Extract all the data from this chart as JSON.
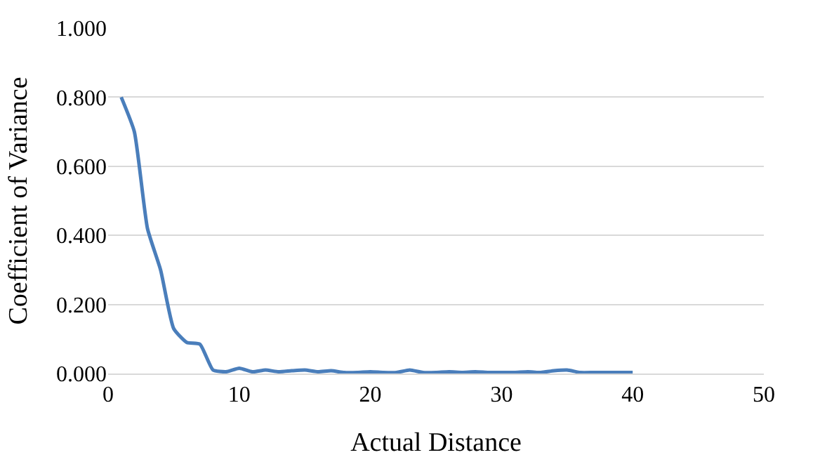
{
  "chart_data": {
    "type": "line",
    "xlabel": "Actual Distance",
    "ylabel": "Coefficient of Variance",
    "x": [
      1,
      2,
      3,
      4,
      5,
      6,
      7,
      8,
      9,
      10,
      11,
      12,
      13,
      14,
      15,
      16,
      17,
      18,
      19,
      20,
      21,
      22,
      23,
      24,
      25,
      26,
      27,
      28,
      29,
      30,
      31,
      32,
      33,
      34,
      35,
      36,
      37,
      38,
      39,
      40
    ],
    "series": [
      {
        "color": "#4a7ebb",
        "values": [
          0.8,
          0.7,
          0.42,
          0.3,
          0.13,
          0.09,
          0.085,
          0.01,
          0.005,
          0.015,
          0.005,
          0.01,
          0.005,
          0.008,
          0.01,
          0.005,
          0.008,
          0.003,
          0.003,
          0.005,
          0.003,
          0.003,
          0.01,
          0.003,
          0.003,
          0.005,
          0.003,
          0.005,
          0.003,
          0.003,
          0.003,
          0.005,
          0.003,
          0.008,
          0.01,
          0.003,
          0.003,
          0.003,
          0.003,
          0.003
        ]
      }
    ],
    "xlim": [
      0,
      50
    ],
    "xticks": [
      0,
      10,
      20,
      30,
      40,
      50
    ],
    "ylim": [
      0,
      1
    ],
    "yticks": [
      {
        "value": 0,
        "label": "0.000"
      },
      {
        "value": 0.2,
        "label": "0.200"
      },
      {
        "value": 0.4,
        "label": "0.400"
      },
      {
        "value": 0.6,
        "label": "0.600"
      },
      {
        "value": 0.8,
        "label": "0.800"
      },
      {
        "value": 1,
        "label": "1.000"
      }
    ],
    "grid": "y",
    "legend": false,
    "marker": "none",
    "line_style": "solid"
  }
}
